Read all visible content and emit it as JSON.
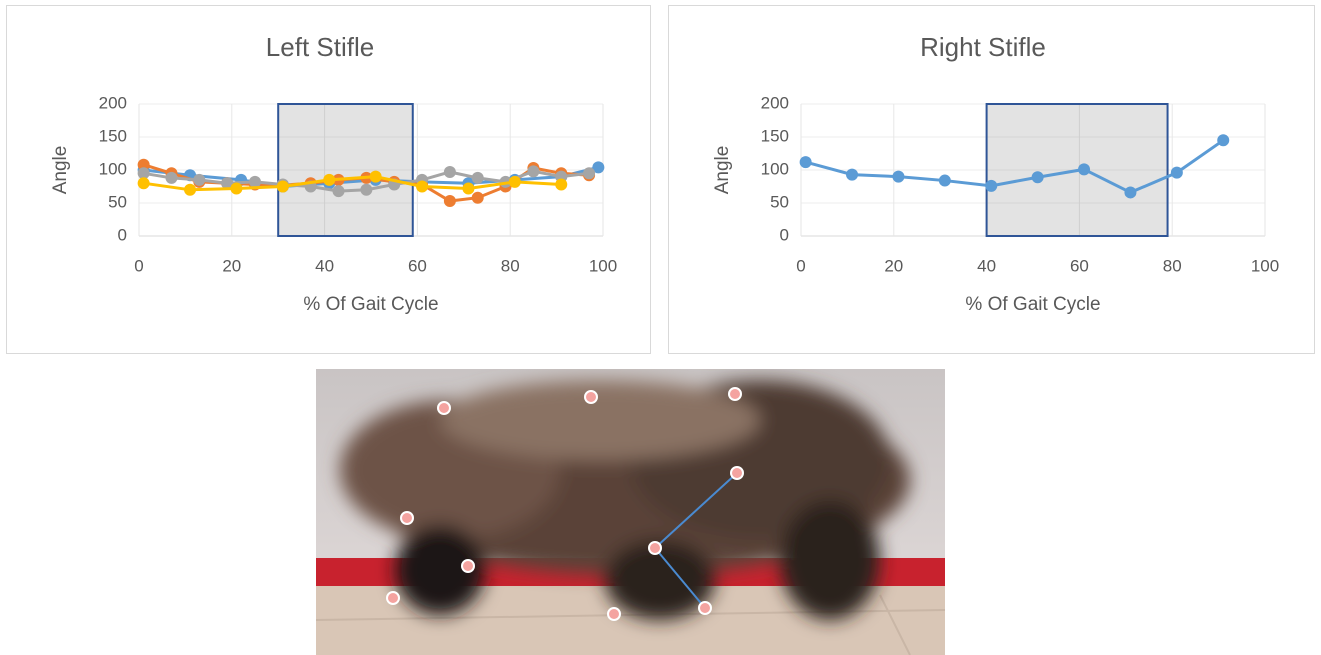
{
  "chart_data": [
    {
      "type": "line",
      "title": "Left Stifle",
      "x_label": "% Of Gait Cycle",
      "y_label": "Angle",
      "xlim": [
        0,
        100
      ],
      "xticks": [
        0,
        20,
        40,
        60,
        80,
        100
      ],
      "ylim": [
        0,
        200
      ],
      "yticks": [
        0,
        50,
        100,
        150,
        200
      ],
      "grid": true,
      "highlight": [
        30,
        59
      ],
      "series": [
        {
          "color": "#5b9bd5",
          "x": [
            1,
            11,
            22,
            31,
            41,
            51,
            61,
            71,
            81,
            91,
            99
          ],
          "values": [
            100,
            92,
            85,
            75,
            80,
            85,
            82,
            80,
            85,
            90,
            104
          ]
        },
        {
          "color": "#ed7d31",
          "x": [
            1,
            7,
            13,
            19,
            25,
            31,
            37,
            43,
            49,
            55,
            61,
            67,
            73,
            79,
            85,
            91,
            97
          ],
          "values": [
            108,
            95,
            82,
            80,
            78,
            77,
            80,
            85,
            88,
            82,
            78,
            53,
            58,
            75,
            103,
            95,
            92
          ]
        },
        {
          "color": "#a5a5a5",
          "x": [
            1,
            7,
            13,
            19,
            25,
            31,
            37,
            43,
            49,
            55,
            61,
            67,
            73,
            79,
            85,
            91,
            97
          ],
          "values": [
            95,
            88,
            85,
            80,
            82,
            78,
            75,
            68,
            70,
            78,
            85,
            97,
            88,
            82,
            98,
            90,
            95
          ]
        },
        {
          "color": "#ffc000",
          "x": [
            1,
            11,
            21,
            31,
            41,
            51,
            61,
            71,
            81,
            91
          ],
          "values": [
            80,
            70,
            72,
            75,
            85,
            90,
            75,
            72,
            82,
            78
          ]
        }
      ]
    },
    {
      "type": "line",
      "title": "Right Stifle",
      "x_label": "% Of Gait Cycle",
      "y_label": "Angle",
      "xlim": [
        0,
        100
      ],
      "xticks": [
        0,
        20,
        40,
        60,
        80,
        100
      ],
      "ylim": [
        0,
        200
      ],
      "yticks": [
        0,
        50,
        100,
        150,
        200
      ],
      "grid": true,
      "highlight": [
        40,
        79
      ],
      "series": [
        {
          "color": "#5b9bd5",
          "x": [
            1,
            11,
            21,
            31,
            41,
            51,
            61,
            71,
            81,
            91
          ],
          "values": [
            112,
            93,
            90,
            84,
            76,
            89,
            101,
            66,
            96,
            145
          ]
        }
      ]
    }
  ]
}
